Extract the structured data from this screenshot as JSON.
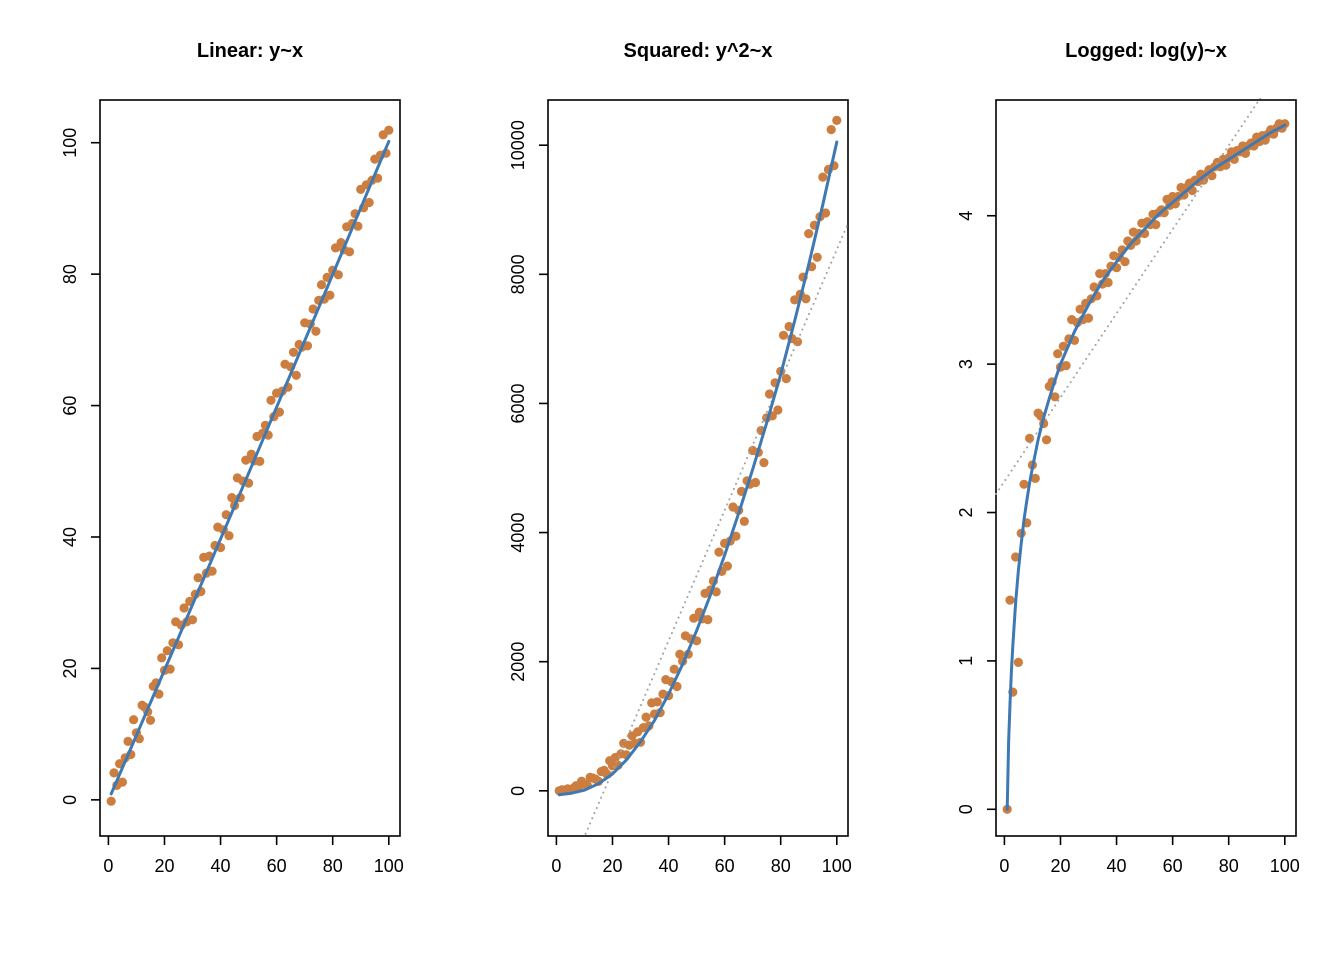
{
  "figure": {
    "background": "#ffffff"
  },
  "styles": {
    "point": "#CB7E3F",
    "fit": "#3E79B4",
    "ref": "#A3A3A3",
    "axis": "#000000",
    "text": "#000000"
  },
  "chart_data": [
    {
      "type": "scatter",
      "title": "Linear: y~x",
      "xlabel": "",
      "ylabel": "",
      "grid": false,
      "xlim": [
        -3,
        104
      ],
      "ylim": [
        -5.5,
        106.5
      ],
      "xticks": [
        0,
        20,
        40,
        60,
        80,
        100
      ],
      "yticks": [
        0,
        20,
        40,
        60,
        80,
        100
      ],
      "x": [
        1,
        2,
        3,
        4,
        5,
        6,
        7,
        8,
        9,
        10,
        11,
        12,
        13,
        14,
        15,
        16,
        17,
        18,
        19,
        20,
        21,
        22,
        23,
        24,
        25,
        26,
        27,
        28,
        29,
        30,
        31,
        32,
        33,
        34,
        35,
        36,
        37,
        38,
        39,
        40,
        41,
        42,
        43,
        44,
        45,
        46,
        47,
        48,
        49,
        50,
        51,
        52,
        53,
        54,
        55,
        56,
        57,
        58,
        59,
        60,
        61,
        62,
        63,
        64,
        65,
        66,
        67,
        68,
        69,
        70,
        71,
        72,
        73,
        74,
        75,
        76,
        77,
        78,
        79,
        80,
        81,
        82,
        83,
        84,
        85,
        86,
        87,
        88,
        89,
        90,
        91,
        92,
        93,
        94,
        95,
        96,
        97,
        98,
        99,
        100
      ],
      "y": [
        -0.2,
        4.1,
        2.2,
        5.5,
        2.7,
        6.4,
        8.9,
        6.9,
        12.2,
        10.2,
        9.3,
        14.4,
        14.1,
        13.4,
        12.1,
        17.3,
        17.8,
        16.1,
        21.6,
        19.7,
        22.7,
        19.9,
        23.9,
        27.1,
        23.6,
        26.6,
        29.2,
        27.1,
        30.2,
        27.4,
        31.3,
        33.8,
        31.7,
        36.9,
        34.5,
        37.1,
        34.8,
        38.7,
        41.5,
        38.4,
        41.1,
        43.4,
        40.2,
        46,
        44.8,
        49,
        46,
        48.5,
        51.7,
        48.2,
        52.6,
        51.6,
        55.3,
        51.5,
        55.8,
        57,
        55.5,
        60.8,
        58.3,
        61.9,
        59,
        62.2,
        66.3,
        62.8,
        65.9,
        68.1,
        64.6,
        69.3,
        68.9,
        72.6,
        69.1,
        72.4,
        74.7,
        71.3,
        76,
        78.4,
        76.2,
        79.5,
        76.8,
        80.6,
        84,
        79.9,
        84.8,
        83.7,
        87.2,
        83.4,
        87.7,
        89.2,
        87.3,
        92.9,
        90.1,
        93.6,
        90.9,
        94.3,
        97.5,
        94.6,
        98.1,
        101.2,
        98.4,
        101.9
      ],
      "lines": [
        {
          "name": "fit-line",
          "color_key": "fit",
          "width": 3,
          "dash": null,
          "points": [
            [
              1,
              0.9
            ],
            [
              25,
              24.7
            ],
            [
              50,
              49.7
            ],
            [
              75,
              74.9
            ],
            [
              100,
              100.2
            ]
          ]
        }
      ]
    },
    {
      "type": "scatter",
      "title": "Squared: y^2~x",
      "xlabel": "",
      "ylabel": "",
      "grid": false,
      "xlim": [
        -3,
        104
      ],
      "ylim": [
        -700,
        10700
      ],
      "xticks": [
        0,
        20,
        40,
        60,
        80,
        100
      ],
      "yticks": [
        0,
        2000,
        4000,
        6000,
        8000,
        10000
      ],
      "x": [
        1,
        2,
        3,
        4,
        5,
        6,
        7,
        8,
        9,
        10,
        11,
        12,
        13,
        14,
        15,
        16,
        17,
        18,
        19,
        20,
        21,
        22,
        23,
        24,
        25,
        26,
        27,
        28,
        29,
        30,
        31,
        32,
        33,
        34,
        35,
        36,
        37,
        38,
        39,
        40,
        41,
        42,
        43,
        44,
        45,
        46,
        47,
        48,
        49,
        50,
        51,
        52,
        53,
        54,
        55,
        56,
        57,
        58,
        59,
        60,
        61,
        62,
        63,
        64,
        65,
        66,
        67,
        68,
        69,
        70,
        71,
        72,
        73,
        74,
        75,
        76,
        77,
        78,
        79,
        80,
        81,
        82,
        83,
        84,
        85,
        86,
        87,
        88,
        89,
        90,
        91,
        92,
        93,
        94,
        95,
        96,
        97,
        98,
        99,
        100
      ],
      "y": [
        0,
        16.8,
        4.8,
        30.3,
        7.3,
        41,
        79.2,
        47.6,
        148.8,
        104,
        86.5,
        207.4,
        198.8,
        179.6,
        146.4,
        299.3,
        316.8,
        259.2,
        466.6,
        388.1,
        515.3,
        396,
        571.2,
        734.4,
        556.9,
        707.6,
        852.6,
        734.4,
        912,
        750.8,
        979.7,
        1142.4,
        1004.9,
        1361.6,
        1190.3,
        1376.4,
        1211,
        1497.7,
        1722.3,
        1474.6,
        1689.2,
        1883.6,
        1616,
        2116,
        2007,
        2401,
        2116,
        2352.3,
        2672.9,
        2323.2,
        2766.8,
        2662.6,
        3058.1,
        2652.3,
        3113.6,
        3249,
        3080.3,
        3696.6,
        3398.9,
        3831.6,
        3481,
        3868.8,
        4395.7,
        3943.8,
        4342.8,
        4637.6,
        4173.2,
        4802.5,
        4747.2,
        5270.8,
        4774.8,
        5241.8,
        5580.1,
        5083.7,
        5776,
        6146.6,
        5806.4,
        6320.3,
        5898.2,
        6496.4,
        7056,
        6384,
        7191,
        7005.7,
        7603.8,
        6955.6,
        7691.3,
        7956.6,
        7621.3,
        8630.4,
        8118,
        8761,
        8262.8,
        8892.5,
        9506.3,
        8949.2,
        9623.6,
        10241.4,
        9682.6,
        10383.6
      ],
      "lines": [
        {
          "name": "linear-reference-line",
          "color_key": "ref",
          "width": 2,
          "dash": "0.1 5.5",
          "points": [
            [
              -3,
              -2020
            ],
            [
              104,
              8787
            ]
          ]
        },
        {
          "name": "loess-fit-line",
          "color_key": "fit",
          "width": 3,
          "dash": null,
          "points": [
            [
              1,
              -60
            ],
            [
              5,
              -40
            ],
            [
              10,
              10
            ],
            [
              15,
              110
            ],
            [
              20,
              260
            ],
            [
              25,
              480
            ],
            [
              30,
              760
            ],
            [
              35,
              1090
            ],
            [
              40,
              1500
            ],
            [
              45,
              1960
            ],
            [
              50,
              2480
            ],
            [
              55,
              3040
            ],
            [
              60,
              3650
            ],
            [
              65,
              4300
            ],
            [
              70,
              4980
            ],
            [
              75,
              5700
            ],
            [
              80,
              6450
            ],
            [
              85,
              7280
            ],
            [
              90,
              8150
            ],
            [
              95,
              9080
            ],
            [
              100,
              10050
            ]
          ]
        }
      ]
    },
    {
      "type": "scatter",
      "title": "Logged: log(y)~x",
      "xlabel": "",
      "ylabel": "",
      "grid": false,
      "xlim": [
        -3,
        104
      ],
      "ylim": [
        -0.18,
        4.78
      ],
      "xticks": [
        0,
        20,
        40,
        60,
        80,
        100
      ],
      "yticks": [
        0,
        1,
        2,
        3,
        4
      ],
      "x": [
        1,
        2,
        3,
        4,
        5,
        6,
        7,
        8,
        9,
        10,
        11,
        12,
        13,
        14,
        15,
        16,
        17,
        18,
        19,
        20,
        21,
        22,
        23,
        24,
        25,
        26,
        27,
        28,
        29,
        30,
        31,
        32,
        33,
        34,
        35,
        36,
        37,
        38,
        39,
        40,
        41,
        42,
        43,
        44,
        45,
        46,
        47,
        48,
        49,
        50,
        51,
        52,
        53,
        54,
        55,
        56,
        57,
        58,
        59,
        60,
        61,
        62,
        63,
        64,
        65,
        66,
        67,
        68,
        69,
        70,
        71,
        72,
        73,
        74,
        75,
        76,
        77,
        78,
        79,
        80,
        81,
        82,
        83,
        84,
        85,
        86,
        87,
        88,
        89,
        90,
        91,
        92,
        93,
        94,
        95,
        96,
        97,
        98,
        99,
        100
      ],
      "y": [
        0,
        1.41,
        0.79,
        1.7,
        0.99,
        1.86,
        2.19,
        1.93,
        2.5,
        2.32,
        2.23,
        2.67,
        2.65,
        2.6,
        2.49,
        2.85,
        2.88,
        2.78,
        3.07,
        2.98,
        3.12,
        2.99,
        3.17,
        3.3,
        3.16,
        3.28,
        3.37,
        3.3,
        3.41,
        3.31,
        3.44,
        3.52,
        3.46,
        3.61,
        3.54,
        3.61,
        3.55,
        3.66,
        3.73,
        3.65,
        3.72,
        3.77,
        3.69,
        3.83,
        3.8,
        3.89,
        3.83,
        3.88,
        3.95,
        3.88,
        3.96,
        3.94,
        4.01,
        3.94,
        4.02,
        4.04,
        4.02,
        4.11,
        4.07,
        4.13,
        4.08,
        4.13,
        4.19,
        4.14,
        4.19,
        4.22,
        4.17,
        4.24,
        4.23,
        4.28,
        4.24,
        4.28,
        4.31,
        4.27,
        4.33,
        4.36,
        4.33,
        4.38,
        4.34,
        4.39,
        4.43,
        4.38,
        4.44,
        4.43,
        4.47,
        4.42,
        4.47,
        4.49,
        4.47,
        4.53,
        4.5,
        4.54,
        4.51,
        4.55,
        4.58,
        4.55,
        4.59,
        4.62,
        4.59,
        4.62
      ],
      "lines": [
        {
          "name": "linear-reference-line",
          "color_key": "ref",
          "width": 2,
          "dash": "0.1 5.5",
          "points": [
            [
              -3,
              2.125
            ],
            [
              104,
              5.153
            ]
          ]
        },
        {
          "name": "loess-fit-line",
          "color_key": "fit",
          "width": 3,
          "dash": null,
          "points": [
            [
              1,
              0.0
            ],
            [
              1.5,
              0.45
            ],
            [
              2,
              0.71
            ],
            [
              2.5,
              0.93
            ],
            [
              3,
              1.1
            ],
            [
              4,
              1.39
            ],
            [
              5,
              1.61
            ],
            [
              6,
              1.79
            ],
            [
              7,
              1.95
            ],
            [
              8,
              2.08
            ],
            [
              9,
              2.2
            ],
            [
              10,
              2.3
            ],
            [
              12,
              2.49
            ],
            [
              14,
              2.64
            ],
            [
              16,
              2.77
            ],
            [
              18,
              2.89
            ],
            [
              20,
              3.0
            ],
            [
              25,
              3.22
            ],
            [
              30,
              3.4
            ],
            [
              35,
              3.56
            ],
            [
              40,
              3.69
            ],
            [
              45,
              3.81
            ],
            [
              50,
              3.91
            ],
            [
              55,
              4.01
            ],
            [
              60,
              4.09
            ],
            [
              65,
              4.17
            ],
            [
              70,
              4.25
            ],
            [
              75,
              4.32
            ],
            [
              80,
              4.38
            ],
            [
              85,
              4.44
            ],
            [
              90,
              4.5
            ],
            [
              95,
              4.56
            ],
            [
              100,
              4.61
            ]
          ]
        }
      ]
    }
  ]
}
